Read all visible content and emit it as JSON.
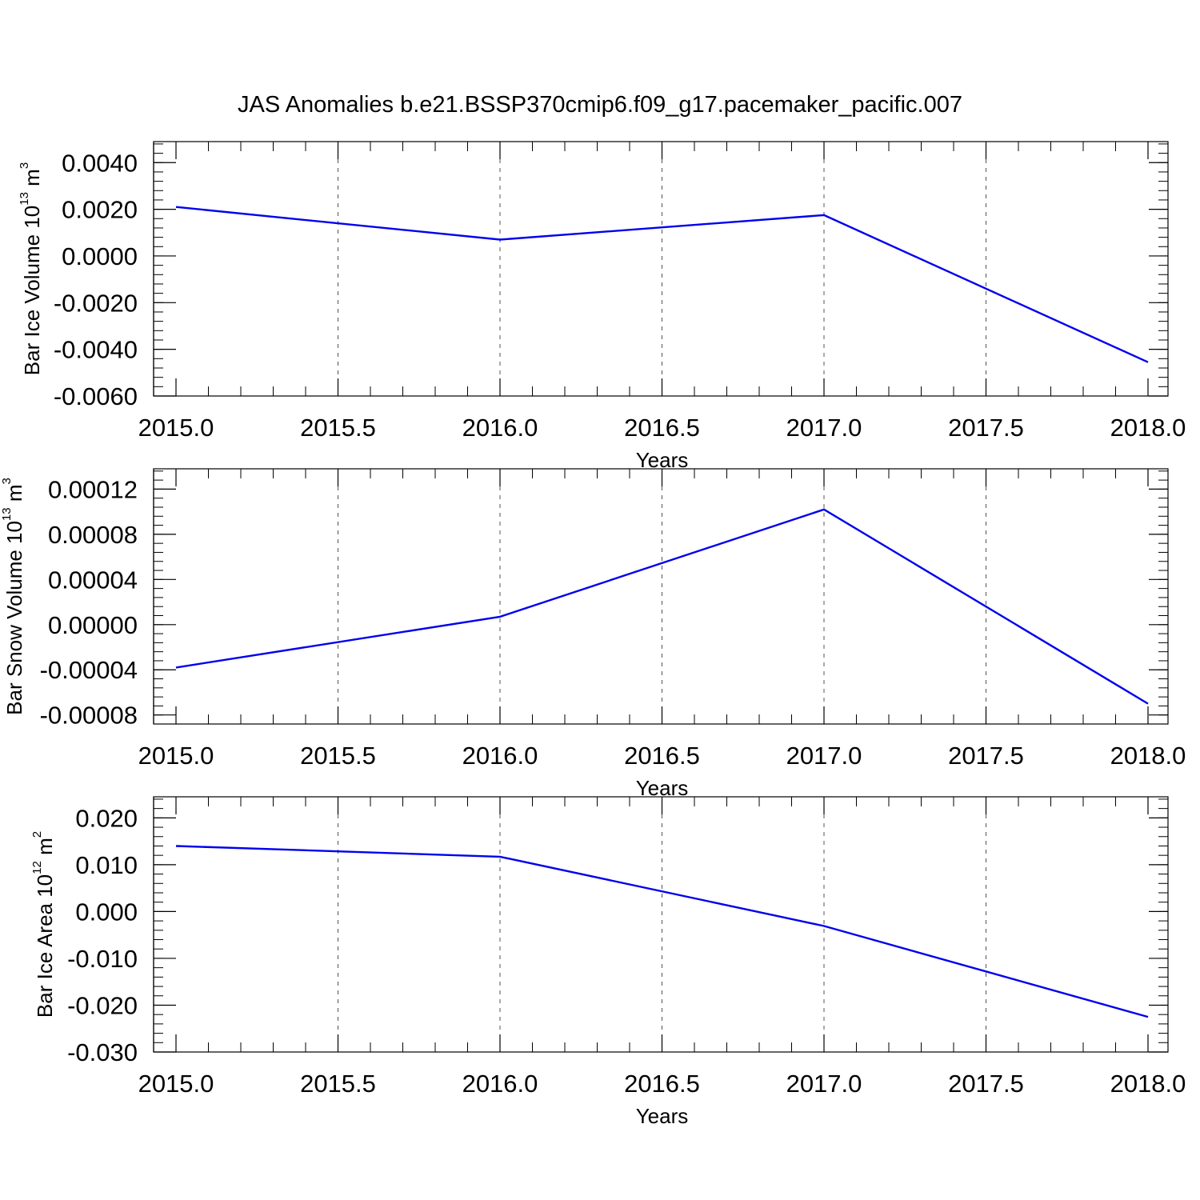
{
  "figure_title": "JAS Anomalies b.e21.BSSP370cmip6.f09_g17.pacemaker_pacific.007",
  "chart_data": [
    {
      "type": "line",
      "id": "ice-volume",
      "xlabel": "Years",
      "ylabel_main": "Bar Ice Volume 10",
      "ylabel_sup1": "13",
      "ylabel_mid": " m",
      "ylabel_sup2": "3",
      "xlim": [
        2015.0,
        2018.0
      ],
      "ylim": [
        -0.006,
        0.0049
      ],
      "x_ticks": [
        2015.0,
        2015.5,
        2016.0,
        2016.5,
        2017.0,
        2017.5,
        2018.0
      ],
      "x_tick_labels": [
        "2015.0",
        "2015.5",
        "2016.0",
        "2016.5",
        "2017.0",
        "2017.5",
        "2018.0"
      ],
      "y_ticks": [
        0.004,
        0.002,
        0.0,
        -0.002,
        -0.004,
        -0.006
      ],
      "y_tick_labels": [
        "0.0040",
        "0.0020",
        "0.0000",
        "-0.0020",
        "-0.0040",
        "-0.0060"
      ],
      "y_minor_step": 0.0004,
      "grid_x": true,
      "x": [
        2015,
        2016,
        2017,
        2018
      ],
      "y": [
        0.0021,
        0.0007,
        0.00175,
        -0.00455
      ],
      "color": "#0000ee"
    },
    {
      "type": "line",
      "id": "snow-volume",
      "xlabel": "Years",
      "ylabel_main": "Bar Snow Volume 10",
      "ylabel_sup1": "13",
      "ylabel_mid": " m",
      "ylabel_sup2": "3",
      "xlim": [
        2015.0,
        2018.0
      ],
      "ylim": [
        -8.8e-05,
        0.000138
      ],
      "x_ticks": [
        2015.0,
        2015.5,
        2016.0,
        2016.5,
        2017.0,
        2017.5,
        2018.0
      ],
      "x_tick_labels": [
        "2015.0",
        "2015.5",
        "2016.0",
        "2016.5",
        "2017.0",
        "2017.5",
        "2018.0"
      ],
      "y_ticks": [
        0.00012,
        8e-05,
        4e-05,
        0.0,
        -4e-05,
        -8e-05
      ],
      "y_tick_labels": [
        "0.00012",
        "0.00008",
        "0.00004",
        "0.00000",
        "-0.00004",
        "-0.00008"
      ],
      "y_minor_step": 8e-06,
      "grid_x": true,
      "x": [
        2015,
        2016,
        2017,
        2018
      ],
      "y": [
        -3.8e-05,
        7e-06,
        0.000102,
        -7e-05
      ],
      "color": "#0000ee"
    },
    {
      "type": "line",
      "id": "ice-area",
      "xlabel": "Years",
      "ylabel_main": "Bar Ice Area 10",
      "ylabel_sup1": "12",
      "ylabel_mid": " m",
      "ylabel_sup2": "2",
      "xlim": [
        2015.0,
        2018.0
      ],
      "ylim": [
        -0.03,
        0.0245
      ],
      "x_ticks": [
        2015.0,
        2015.5,
        2016.0,
        2016.5,
        2017.0,
        2017.5,
        2018.0
      ],
      "x_tick_labels": [
        "2015.0",
        "2015.5",
        "2016.0",
        "2016.5",
        "2017.0",
        "2017.5",
        "2018.0"
      ],
      "y_ticks": [
        0.02,
        0.01,
        0.0,
        -0.01,
        -0.02,
        -0.03
      ],
      "y_tick_labels": [
        "0.020",
        "0.010",
        "0.000",
        "-0.010",
        "-0.020",
        "-0.030"
      ],
      "y_minor_step": 0.002,
      "grid_x": true,
      "x": [
        2015,
        2016,
        2017,
        2018
      ],
      "y": [
        0.014,
        0.0117,
        -0.0031,
        -0.0225
      ],
      "color": "#0000ee"
    }
  ]
}
